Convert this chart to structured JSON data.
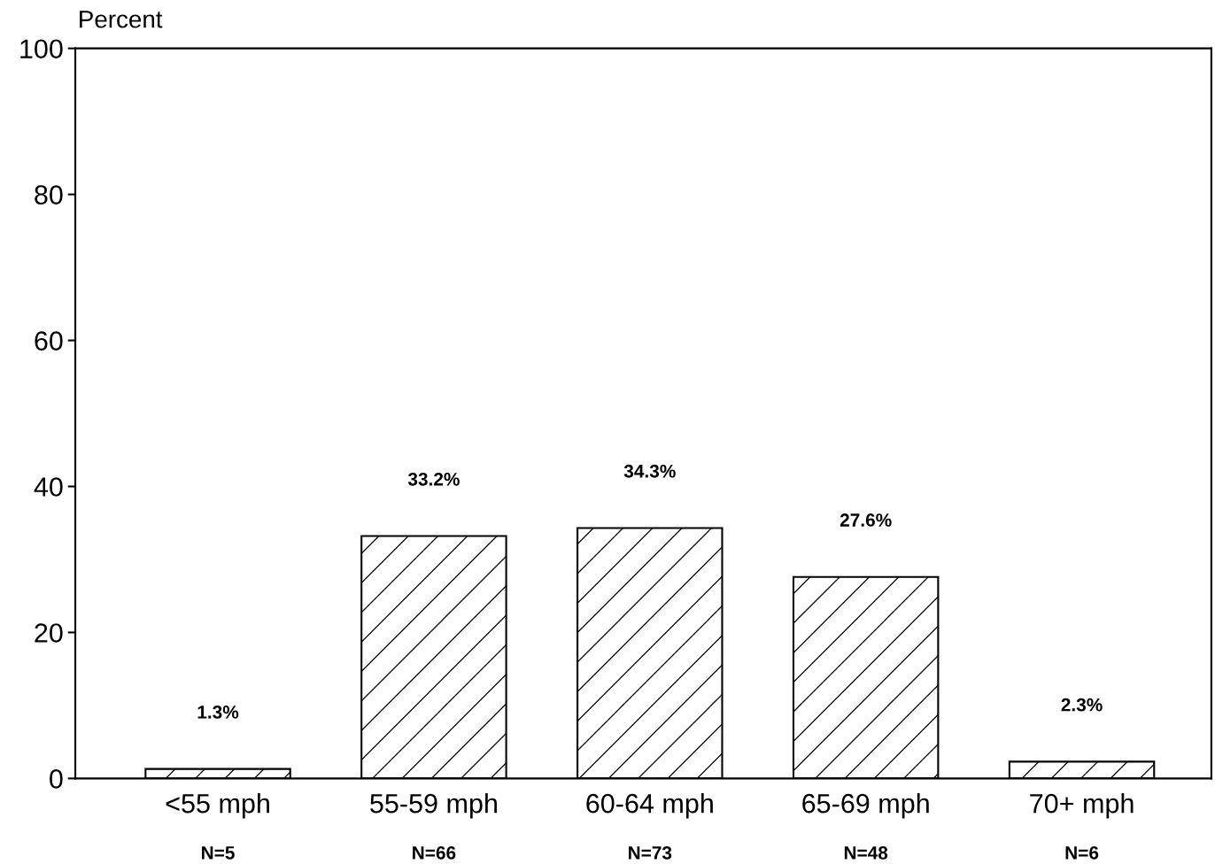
{
  "chart_data": {
    "type": "bar",
    "ylabel": "Percent",
    "categories": [
      "<55 mph",
      "55-59 mph",
      "60-64 mph",
      "65-69 mph",
      "70+ mph"
    ],
    "values": [
      1.3,
      33.2,
      34.3,
      27.6,
      2.3
    ],
    "value_labels": [
      "1.3%",
      "33.2%",
      "34.3%",
      "27.6%",
      "2.3%"
    ],
    "color": "#ffffff",
    "ylim": [
      0,
      100
    ],
    "yticks": [
      0,
      20,
      40,
      60,
      80,
      100
    ],
    "grid": false,
    "legend": false,
    "annotations": [
      "N=5",
      "N=66",
      "N=73",
      "N=48",
      "N=6"
    ]
  }
}
